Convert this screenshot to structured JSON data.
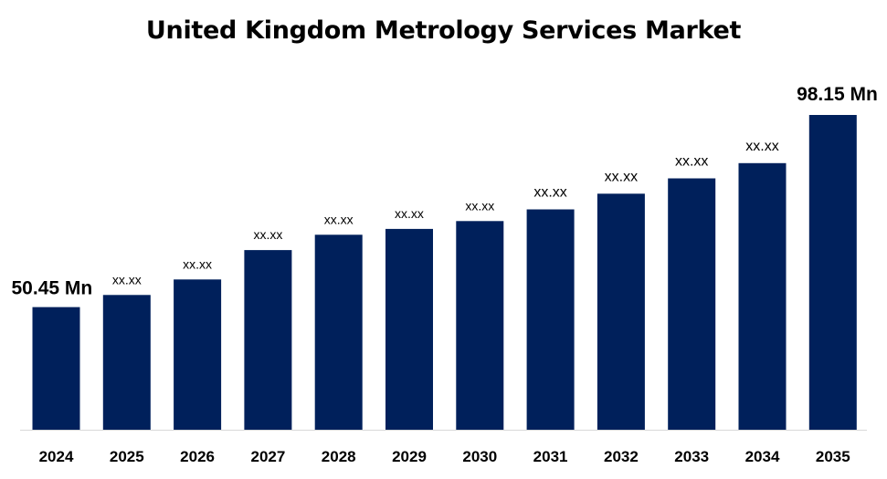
{
  "colors": {
    "bar": "#00205b",
    "axis": "#d9d9d9"
  },
  "chart_data": {
    "type": "bar",
    "title": "United Kingdom Metrology Services Market",
    "xlabel": "",
    "ylabel": "",
    "grid": false,
    "legend": "none",
    "ylim": [
      0,
      100
    ],
    "categories": [
      "2024",
      "2025",
      "2026",
      "2027",
      "2028",
      "2029",
      "2030",
      "2031",
      "2032",
      "2033",
      "2034",
      "2035"
    ],
    "values": [
      50.45,
      53.45,
      57.3,
      64.6,
      68.4,
      69.85,
      71.8,
      74.7,
      78.6,
      82.4,
      86.2,
      98.15
    ],
    "data_labels": [
      "50.45 Mn",
      "xx.xx",
      "xx.xx",
      "xx.xx",
      "xx.xx",
      "xx.xx",
      "xx.xx",
      "xx.xx",
      "xx.xx",
      "xx.xx",
      "xx.xx",
      "98.15 Mn"
    ]
  }
}
